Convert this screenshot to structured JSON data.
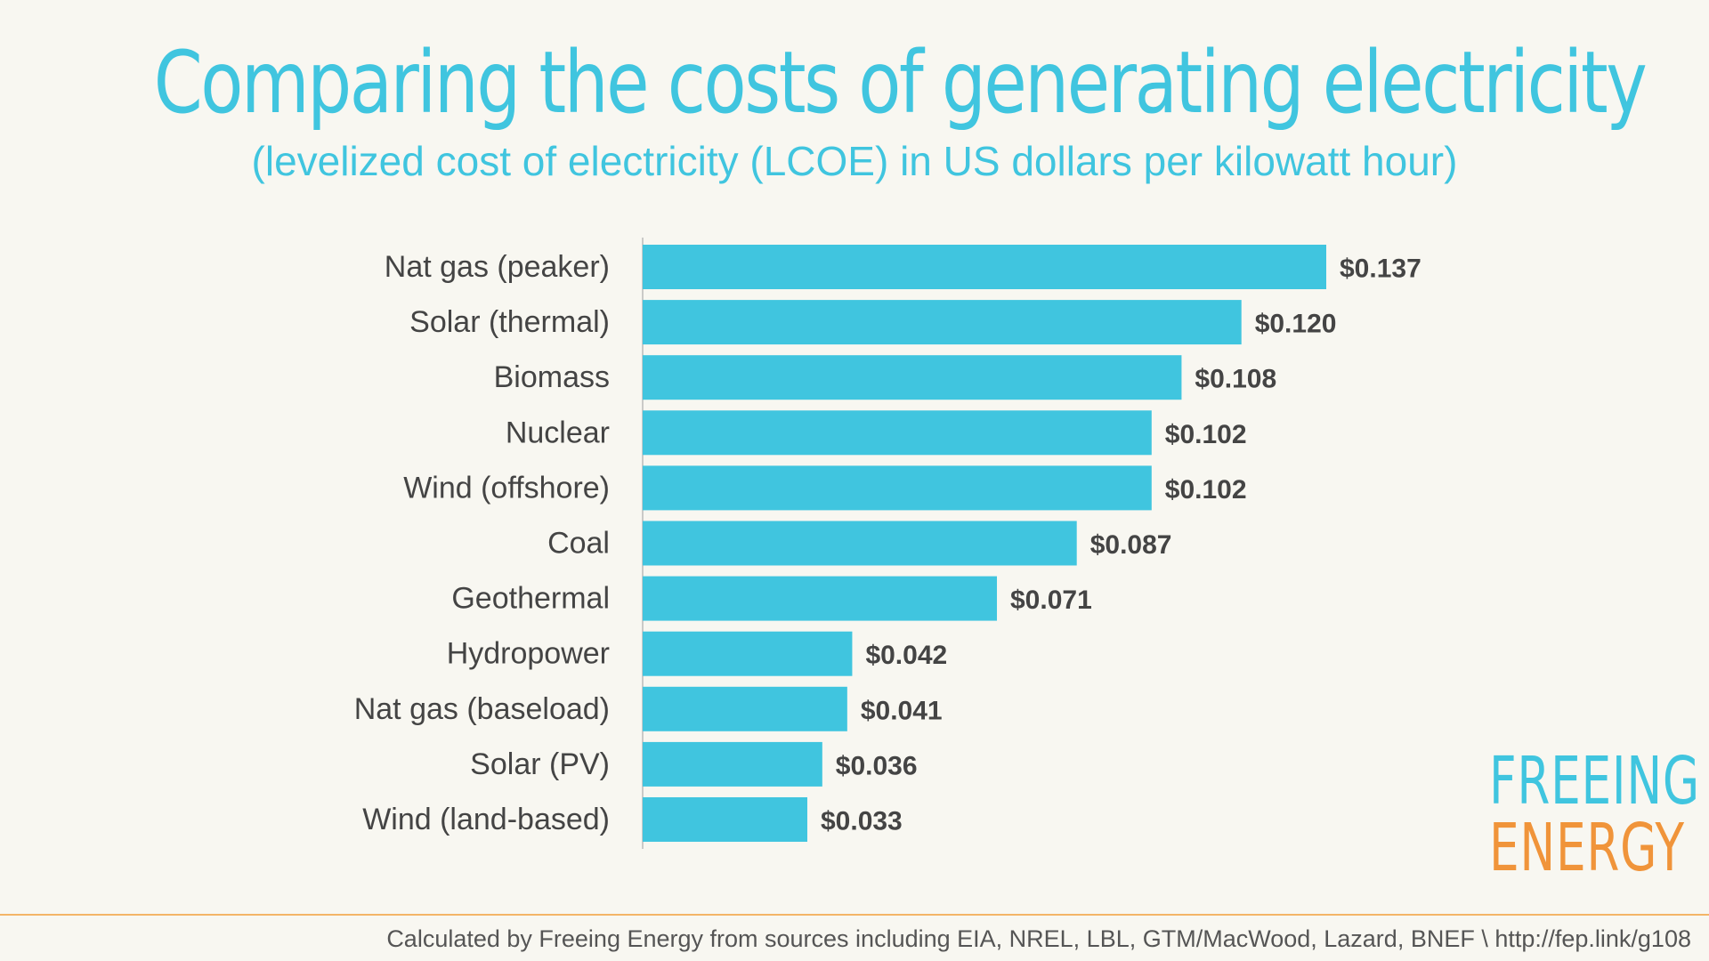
{
  "chart_data": {
    "type": "bar",
    "orientation": "horizontal",
    "title": "Comparing the costs of generating electricity",
    "subtitle": "(levelized cost of electricity (LCOE) in US dollars per kilowatt hour)",
    "categories": [
      "Nat gas (peaker)",
      "Solar (thermal)",
      "Biomass",
      "Nuclear",
      "Wind (offshore)",
      "Coal",
      "Geothermal",
      "Hydropower",
      "Nat gas (baseload)",
      "Solar (PV)",
      "Wind (land-based)"
    ],
    "values": [
      0.137,
      0.12,
      0.108,
      0.102,
      0.102,
      0.087,
      0.071,
      0.042,
      0.041,
      0.036,
      0.033
    ],
    "value_labels": [
      "$0.137",
      "$0.120",
      "$0.108",
      "$0.102",
      "$0.102",
      "$0.087",
      "$0.071",
      "$0.042",
      "$0.041",
      "$0.036",
      "$0.033"
    ],
    "xlim": [
      0,
      0.137
    ],
    "xlabel": "",
    "ylabel": "",
    "grid": false,
    "legend": "none",
    "bar_color": "#40c5df",
    "axis_color": "#bbbbbb",
    "category_label_color": "#444444",
    "value_label_color": "#444444"
  },
  "logo": {
    "line1": "FREEING",
    "line2": "ENERGY",
    "color1": "#40c5df",
    "color2": "#f0943a"
  },
  "footer": {
    "text": "Calculated by Freeing Energy from sources including EIA, NREL, LBL, GTM/MacWood, Lazard, BNEF \\ http://fep.link/g108"
  }
}
